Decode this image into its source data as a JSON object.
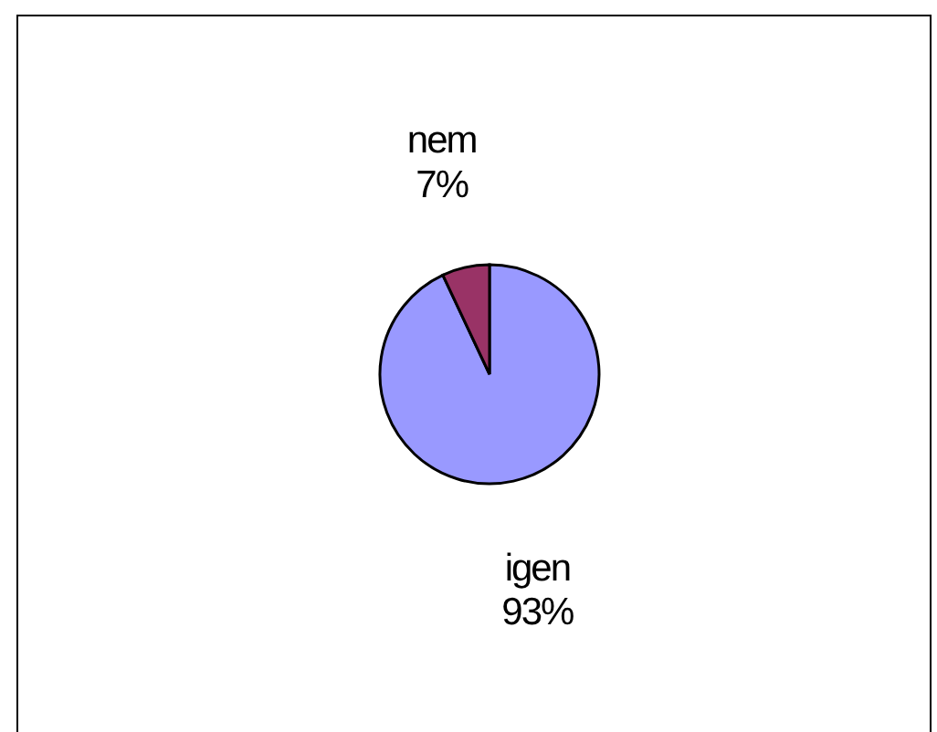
{
  "chart_data": {
    "type": "pie",
    "categories": [
      "igen",
      "nem"
    ],
    "values": [
      93,
      7
    ],
    "value_labels": [
      "93%",
      "7%"
    ],
    "colors": [
      "#9999ff",
      "#993366"
    ],
    "legend": false
  }
}
